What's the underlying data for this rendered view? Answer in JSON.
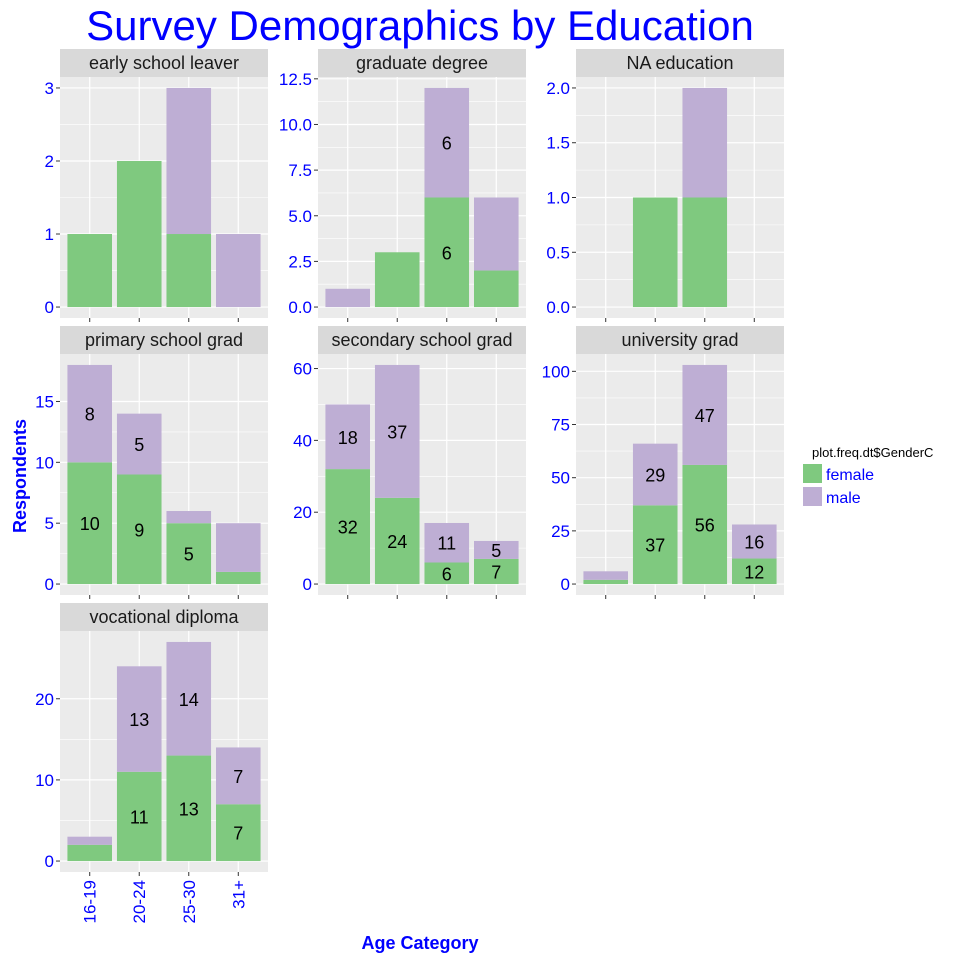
{
  "chart_data": {
    "type": "bar",
    "stacked": true,
    "title": "Survey Demographics by Education",
    "xlabel": "Age Category",
    "ylabel": "Respondents",
    "categories": [
      "16-19",
      "20-24",
      "25-30",
      "31+"
    ],
    "legend": {
      "title": "plot.freq.dt$GenderC",
      "placement": "right",
      "entries": [
        "female",
        "male"
      ]
    },
    "colors": {
      "female": "#7fc97f",
      "male": "#beaed4",
      "accent_text": "#0000ff",
      "panel_bg": "#ebebeb",
      "strip_bg": "#d9d9d9"
    },
    "grid": true,
    "facets": [
      {
        "label": "early school leaver",
        "ylim": [
          0,
          3
        ],
        "yticks": [
          0,
          1,
          2,
          3
        ],
        "ytick_labels": [
          "0",
          "1",
          "2",
          "3"
        ],
        "female": [
          1,
          2,
          1,
          0
        ],
        "male": [
          0,
          0,
          2,
          1
        ],
        "female_labels": [
          "",
          "",
          "",
          ""
        ],
        "male_labels": [
          "",
          "",
          "",
          ""
        ]
      },
      {
        "label": "graduate degree",
        "ylim": [
          0,
          12
        ],
        "yticks": [
          0,
          2.5,
          5,
          7.5,
          10,
          12.5
        ],
        "ytick_labels": [
          "0.0",
          "2.5",
          "5.0",
          "7.5",
          "10.0",
          "12.5"
        ],
        "female": [
          0,
          3,
          6,
          2
        ],
        "male": [
          1,
          0,
          6,
          4
        ],
        "female_labels": [
          "",
          "",
          "6",
          ""
        ],
        "male_labels": [
          "",
          "",
          "6",
          ""
        ]
      },
      {
        "label": "NA education",
        "ylim": [
          0,
          2
        ],
        "yticks": [
          0,
          0.5,
          1,
          1.5,
          2
        ],
        "ytick_labels": [
          "0.0",
          "0.5",
          "1.0",
          "1.5",
          "2.0"
        ],
        "female": [
          0,
          1,
          1,
          0
        ],
        "male": [
          0,
          0,
          1,
          0
        ],
        "female_labels": [
          "",
          "",
          "",
          ""
        ],
        "male_labels": [
          "",
          "",
          "",
          ""
        ]
      },
      {
        "label": "primary school grad",
        "ylim": [
          0,
          18
        ],
        "yticks": [
          0,
          5,
          10,
          15
        ],
        "ytick_labels": [
          "0",
          "5",
          "10",
          "15"
        ],
        "female": [
          10,
          9,
          5,
          1
        ],
        "male": [
          8,
          5,
          1,
          4
        ],
        "female_labels": [
          "10",
          "9",
          "5",
          ""
        ],
        "male_labels": [
          "8",
          "5",
          "",
          ""
        ]
      },
      {
        "label": "secondary school grad",
        "ylim": [
          0,
          61
        ],
        "yticks": [
          0,
          20,
          40,
          60
        ],
        "ytick_labels": [
          "0",
          "20",
          "40",
          "60"
        ],
        "female": [
          32,
          24,
          6,
          7
        ],
        "male": [
          18,
          37,
          11,
          5
        ],
        "female_labels": [
          "32",
          "24",
          "6",
          "7"
        ],
        "male_labels": [
          "18",
          "37",
          "11",
          "5"
        ]
      },
      {
        "label": "university grad",
        "ylim": [
          0,
          103
        ],
        "yticks": [
          0,
          25,
          50,
          75,
          100
        ],
        "ytick_labels": [
          "0",
          "25",
          "50",
          "75",
          "100"
        ],
        "female": [
          2,
          37,
          56,
          12
        ],
        "male": [
          4,
          29,
          47,
          16
        ],
        "female_labels": [
          "",
          "37",
          "56",
          "12"
        ],
        "male_labels": [
          "",
          "29",
          "47",
          "16"
        ]
      },
      {
        "label": "vocational diploma",
        "ylim": [
          0,
          27
        ],
        "yticks": [
          0,
          10,
          20
        ],
        "ytick_labels": [
          "0",
          "10",
          "20"
        ],
        "female": [
          2,
          11,
          13,
          7
        ],
        "male": [
          1,
          13,
          14,
          7
        ],
        "female_labels": [
          "",
          "11",
          "13",
          "7"
        ],
        "male_labels": [
          "",
          "13",
          "14",
          "7"
        ]
      }
    ]
  }
}
